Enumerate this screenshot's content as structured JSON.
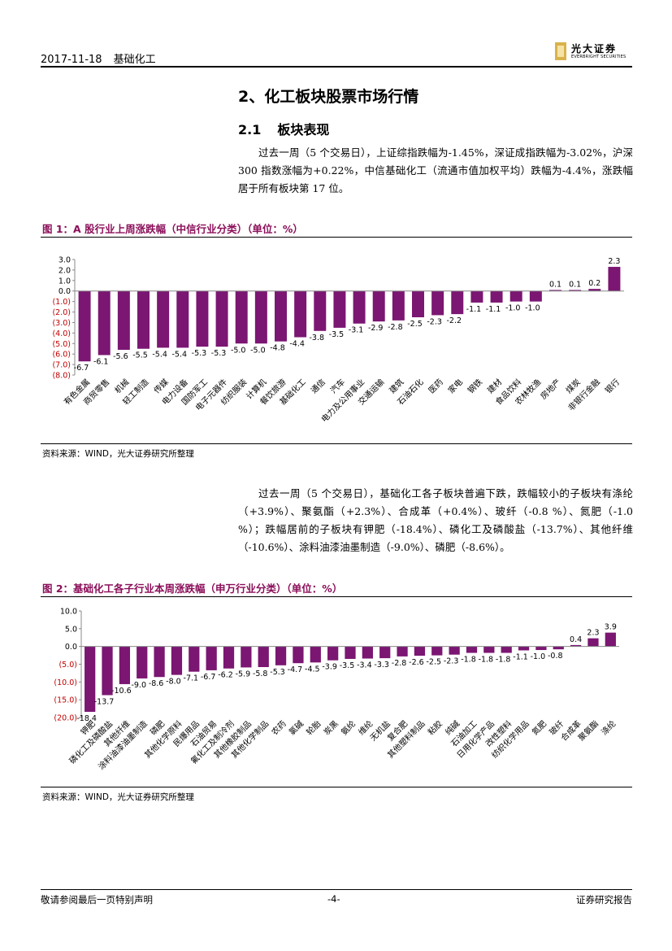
{
  "header": {
    "date": "2017-11-18",
    "industry": "基础化工"
  },
  "logo": {
    "cn": "光大证券",
    "en": "EVERBRIGHT SECURITIES"
  },
  "section": {
    "title": "2、化工板块股票市场行情",
    "sub_num": "2.1",
    "sub_title": "板块表现"
  },
  "paragraph1": "过去一周（5 个交易日），上证综指跌幅为-1.45%，深证成指跌幅为-3.02%，沪深 300 指数涨幅为+0.22%，中信基础化工（流通市值加权平均）跌幅为-4.4%，涨跌幅居于所有板块第 17 位。",
  "paragraph2": "过去一周（5 个交易日），基础化工各子板块普遍下跌，跌幅较小的子板块有涤纶（+3.9%）、聚氨酯（+2.3%）、合成革（+0.4%）、玻纤（-0.8 %）、氮肥（-1.0 %）；跌幅居前的子板块有钾肥（-18.4%）、磷化工及磷酸盐（-13.7%）、其他纤维（-10.6%）、涂料油漆油墨制造（-9.0%）、磷肥（-8.6%）。",
  "figure1": {
    "title": "图 1：A 股行业上周涨跌幅（中信行业分类）（单位：%）",
    "source": "资料来源：WIND，光大证券研究所整理"
  },
  "figure2": {
    "title": "图 2：基础化工各子行业本周涨跌幅（申万行业分类）（单位：%）",
    "source": "资料来源：WIND，光大证券研究所整理"
  },
  "footer": {
    "left": "敬请参阅最后一页特别声明",
    "page": "-4-",
    "right": "证券研究报告"
  },
  "colors": {
    "bar": "#7b1672",
    "figure_title": "#8b0f5a",
    "negative_tick": "#c00000"
  },
  "chart_data": [
    {
      "type": "bar",
      "title": "A 股行业上周涨跌幅（中信行业分类）（单位：%）",
      "categories": [
        "有色金属",
        "商贸零售",
        "机械",
        "轻工制造",
        "传媒",
        "电力设备",
        "国防军工",
        "电子元器件",
        "纺织服装",
        "计算机",
        "餐饮旅游",
        "基础化工",
        "通信",
        "汽车",
        "电力及公用事业",
        "交通运输",
        "建筑",
        "石油石化",
        "医药",
        "家电",
        "钢铁",
        "建材",
        "食品饮料",
        "农林牧渔",
        "房地产",
        "煤炭",
        "非银行金融",
        "银行"
      ],
      "values": [
        -6.7,
        -6.1,
        -5.6,
        -5.5,
        -5.4,
        -5.4,
        -5.3,
        -5.3,
        -5.0,
        -5.0,
        -4.8,
        -4.4,
        -3.8,
        -3.5,
        -3.1,
        -2.9,
        -2.8,
        -2.5,
        -2.3,
        -2.2,
        -1.1,
        -1.1,
        -1.0,
        -1.0,
        0.1,
        0.1,
        0.2,
        2.3
      ],
      "yticks": [
        "3.0",
        "2.0",
        "1.0",
        "0.0",
        "(1.0)",
        "(2.0)",
        "(3.0)",
        "(4.0)",
        "(5.0)",
        "(6.0)",
        "(7.0)",
        "(8.0)"
      ],
      "ylim": [
        -8,
        3
      ],
      "xlabel": "",
      "ylabel": ""
    },
    {
      "type": "bar",
      "title": "基础化工各子行业本周涨跌幅（申万行业分类）（单位：%）",
      "categories": [
        "钾肥",
        "磷化工及磷酸盐",
        "其他纤维",
        "涂料油漆油墨制造",
        "磷肥",
        "其他化学原料",
        "民爆用品",
        "石油贸易",
        "氟化工及制冷剂",
        "其他橡胶制品",
        "其他化学制品",
        "农药",
        "氯碱",
        "轮胎",
        "炭黑",
        "氨纶",
        "维纶",
        "无机盐",
        "复合肥",
        "其他塑料制品",
        "粘胶",
        "纯碱",
        "石油加工",
        "日用化学产品",
        "改性塑料",
        "纺织化学用品",
        "氮肥",
        "玻纤",
        "合成革",
        "聚氨酯",
        "涤纶"
      ],
      "values": [
        -18.4,
        -13.7,
        -10.6,
        -9.0,
        -8.6,
        -8.0,
        -7.1,
        -6.7,
        -6.2,
        -5.9,
        -5.8,
        -5.3,
        -4.7,
        -4.5,
        -3.9,
        -3.5,
        -3.4,
        -3.3,
        -2.8,
        -2.6,
        -2.5,
        -2.3,
        -1.8,
        -1.8,
        -1.8,
        -1.1,
        -1.0,
        -0.8,
        0.4,
        2.3,
        3.9
      ],
      "yticks": [
        "10.0",
        "5.0",
        "0.0",
        "(5.0)",
        "(10.0)",
        "(15.0)",
        "(20.0)"
      ],
      "ylim": [
        -20,
        10
      ],
      "xlabel": "",
      "ylabel": ""
    }
  ]
}
